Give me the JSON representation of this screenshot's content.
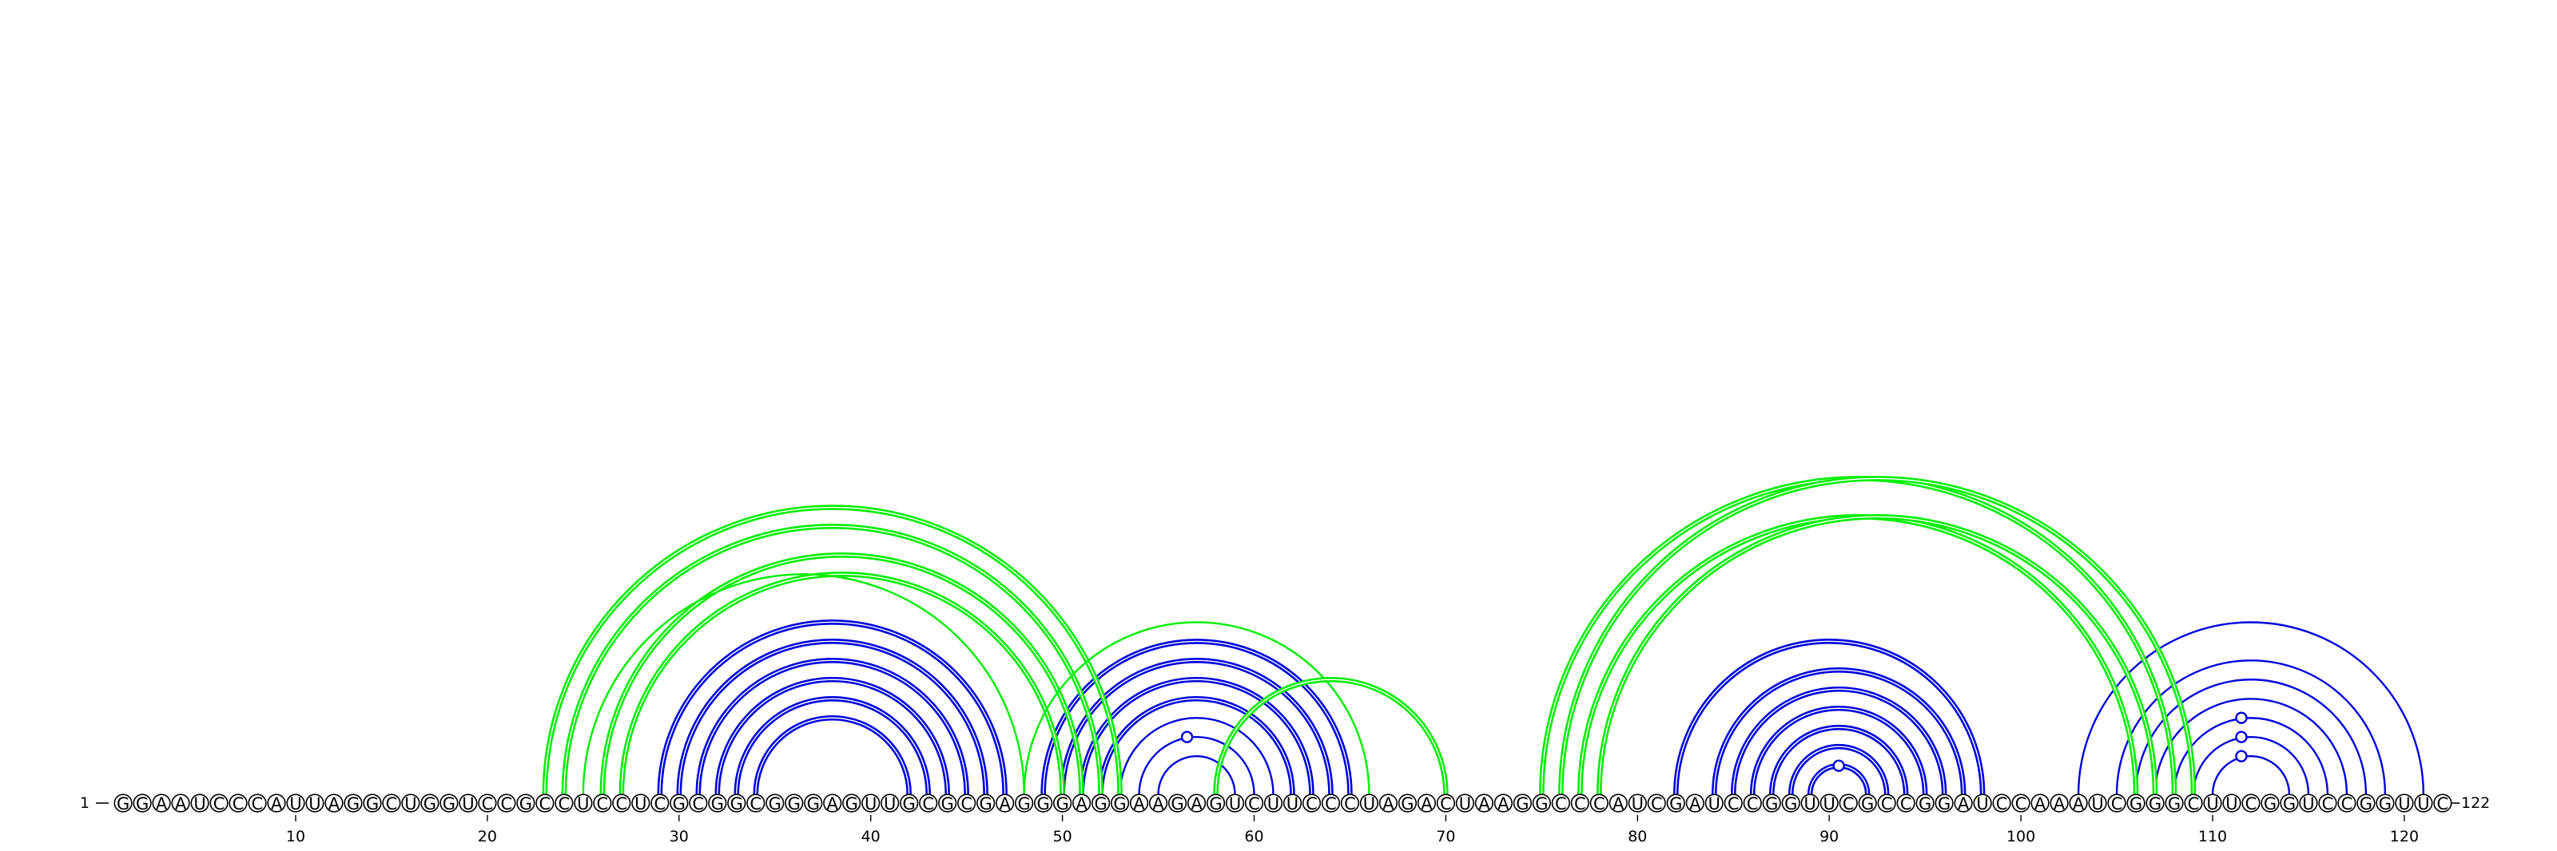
{
  "sequence": "GGAAUCCCAUUAGGCUGGUCCGCCUCCUCGCGGCGGGAGUUGCGCGAGGGAGGAAGAGUCUUCCCUAGACUAAGGCCCAUCGAUCCGGUUCGCCGGAUCCAAAUCGGGCUUCGGUCCGGUUC",
  "start_label": "1",
  "end_label": "122",
  "ticks": [
    {
      "pos": 10,
      "label": "10"
    },
    {
      "pos": 20,
      "label": "20"
    },
    {
      "pos": 30,
      "label": "30"
    },
    {
      "pos": 40,
      "label": "40"
    },
    {
      "pos": 50,
      "label": "50"
    },
    {
      "pos": 60,
      "label": "60"
    },
    {
      "pos": 70,
      "label": "70"
    },
    {
      "pos": 80,
      "label": "80"
    },
    {
      "pos": 90,
      "label": "90"
    },
    {
      "pos": 100,
      "label": "100"
    },
    {
      "pos": 110,
      "label": "110"
    },
    {
      "pos": 120,
      "label": "120"
    }
  ],
  "colors": {
    "blue": "#0000dd",
    "green": "#00ee00",
    "outline": "#000000"
  },
  "pair_groups": [
    {
      "color": "blue",
      "double": true,
      "pairs": [
        [
          29,
          47
        ],
        [
          30,
          46
        ],
        [
          31,
          45
        ],
        [
          32,
          44
        ],
        [
          33,
          43
        ],
        [
          34,
          42
        ]
      ]
    },
    {
      "color": "blue",
      "double": true,
      "pairs": [
        [
          49,
          65
        ],
        [
          50,
          64
        ],
        [
          51,
          63
        ],
        [
          52,
          62
        ]
      ]
    },
    {
      "color": "blue",
      "double": false,
      "pairs": [
        [
          53,
          61
        ],
        [
          54,
          60
        ],
        [
          55,
          59
        ]
      ]
    },
    {
      "color": "blue",
      "double": true,
      "pairs": [
        [
          82,
          98
        ],
        [
          84,
          97
        ],
        [
          85,
          96
        ],
        [
          86,
          95
        ],
        [
          87,
          94
        ],
        [
          88,
          93
        ],
        [
          89,
          92
        ]
      ]
    },
    {
      "color": "blue",
      "double": false,
      "pairs": [
        [
          103,
          121
        ],
        [
          105,
          119
        ],
        [
          106,
          118
        ],
        [
          107,
          117
        ],
        [
          108,
          116
        ],
        [
          109,
          115
        ],
        [
          110,
          114
        ]
      ]
    },
    {
      "color": "green",
      "double": true,
      "pairs": [
        [
          23,
          53
        ],
        [
          24,
          52
        ],
        [
          26,
          51
        ],
        [
          27,
          50
        ]
      ]
    },
    {
      "color": "green",
      "double": false,
      "pairs": [
        [
          25,
          48
        ],
        [
          48,
          66
        ]
      ]
    },
    {
      "color": "green",
      "double": true,
      "pairs": [
        [
          58,
          70
        ]
      ]
    },
    {
      "color": "green",
      "double": true,
      "pairs": [
        [
          75,
          108
        ],
        [
          76,
          109
        ],
        [
          77,
          106
        ],
        [
          78,
          107
        ]
      ]
    }
  ],
  "hairpin_markers": [
    {
      "pos": 56.5,
      "level": 1,
      "color": "blue"
    },
    {
      "pos": 90.5,
      "level": 0,
      "color": "blue"
    },
    {
      "pos": 111.5,
      "level": 0,
      "color": "blue"
    },
    {
      "pos": 111.5,
      "level": 1,
      "color": "blue"
    },
    {
      "pos": 111.5,
      "level": 2,
      "color": "blue"
    }
  ]
}
